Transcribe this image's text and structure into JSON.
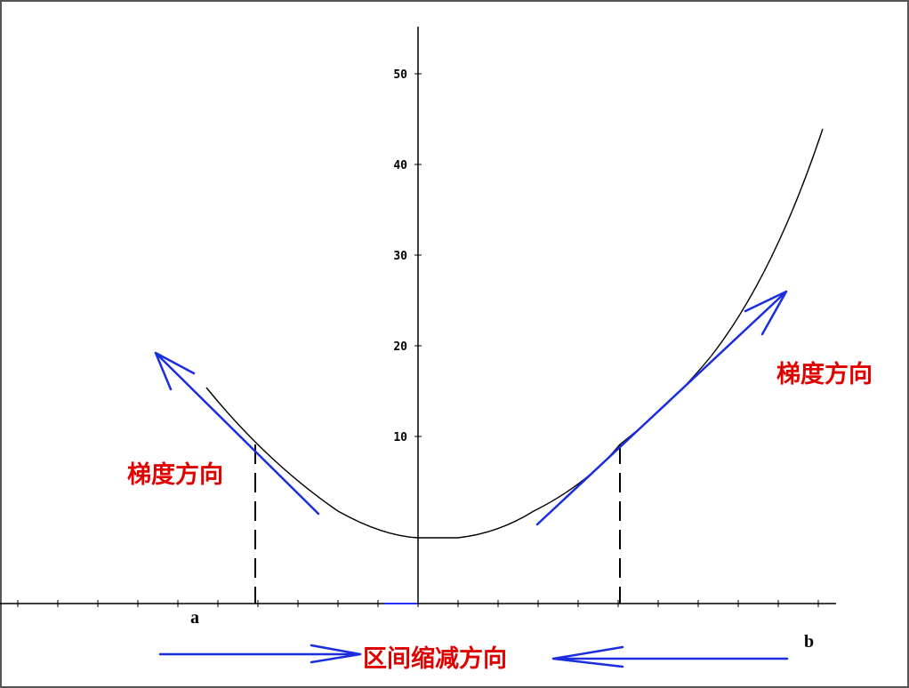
{
  "axis": {
    "ticks": [
      50,
      40,
      30,
      20,
      10
    ]
  },
  "endpoints": {
    "a": "a",
    "b": "b"
  },
  "annotations": {
    "left": "梯度方向",
    "right": "梯度方向",
    "bottom": "区间缩减方向"
  }
}
